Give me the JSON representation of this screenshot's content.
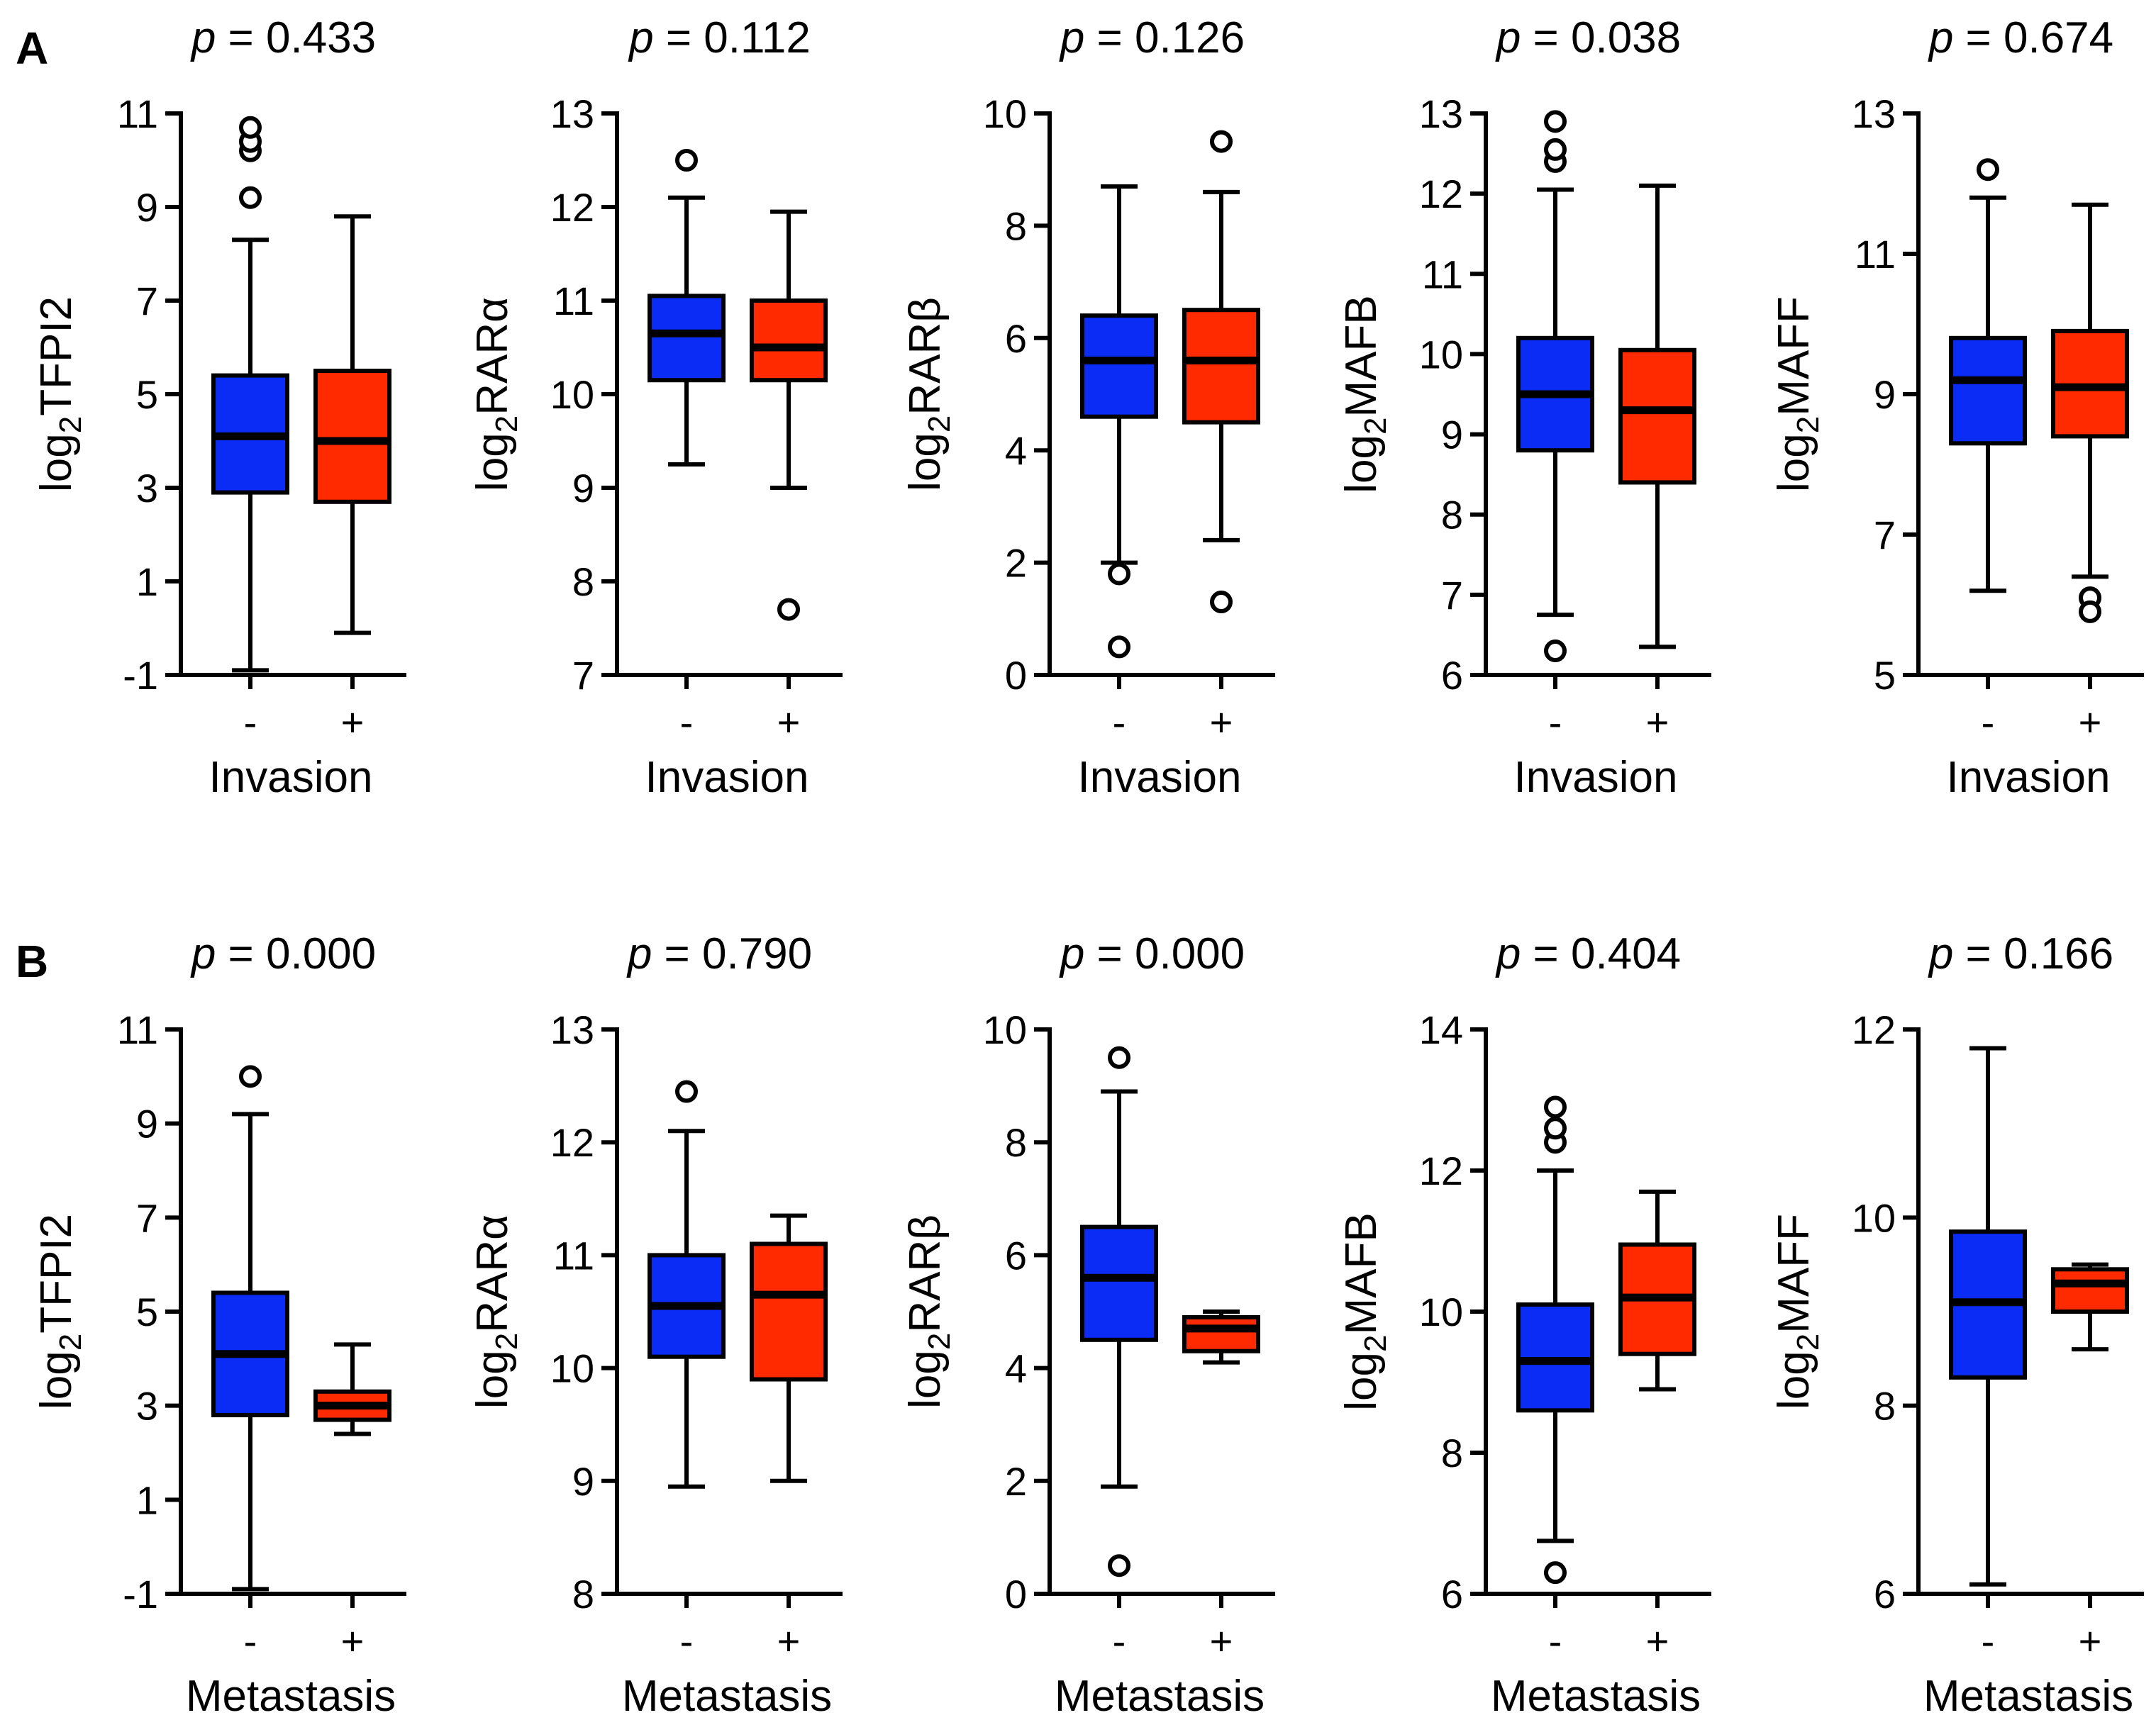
{
  "figure": {
    "panels": [
      {
        "label": "A",
        "xlabel": "Invasion"
      },
      {
        "label": "B",
        "xlabel": "Metastasis"
      }
    ],
    "group_colors": {
      "negative": "#0a2cf5",
      "positive": "#ff2a00"
    },
    "outline_color": "#000000"
  },
  "chart_data": [
    {
      "type": "box",
      "panel": "A",
      "gene": "TFPI2",
      "ylabel_prefix": "log",
      "ylabel_sub": "2",
      "ylabel_gene": "TFPI2",
      "p_prefix": "p",
      "p_text": " = 0.433",
      "xlabel": "Invasion",
      "categories": [
        "-",
        "+"
      ],
      "ylim": [
        -1,
        11
      ],
      "yticks": [
        -1,
        1,
        3,
        5,
        7,
        9,
        11
      ],
      "boxes": [
        {
          "group": "-",
          "whisker_low": -0.9,
          "q1": 2.9,
          "median": 4.1,
          "q3": 5.4,
          "whisker_high": 8.3,
          "outliers": [
            9.2,
            10.2,
            10.4,
            10.7
          ]
        },
        {
          "group": "+",
          "whisker_low": -0.1,
          "q1": 2.7,
          "median": 4.0,
          "q3": 5.5,
          "whisker_high": 8.8,
          "outliers": []
        }
      ]
    },
    {
      "type": "box",
      "panel": "A",
      "gene": "RARα",
      "ylabel_prefix": "log",
      "ylabel_sub": "2",
      "ylabel_gene": "RARα",
      "p_prefix": "p",
      "p_text": " = 0.112",
      "xlabel": "Invasion",
      "categories": [
        "-",
        "+"
      ],
      "ylim": [
        7,
        13
      ],
      "yticks": [
        7,
        8,
        9,
        10,
        11,
        12,
        13
      ],
      "boxes": [
        {
          "group": "-",
          "whisker_low": 9.25,
          "q1": 10.15,
          "median": 10.65,
          "q3": 11.05,
          "whisker_high": 12.1,
          "outliers": [
            12.5
          ]
        },
        {
          "group": "+",
          "whisker_low": 9.0,
          "q1": 10.15,
          "median": 10.5,
          "q3": 11.0,
          "whisker_high": 11.95,
          "outliers": [
            7.7
          ]
        }
      ]
    },
    {
      "type": "box",
      "panel": "A",
      "gene": "RARβ",
      "ylabel_prefix": "log",
      "ylabel_sub": "2",
      "ylabel_gene": "RARβ",
      "p_prefix": "p",
      "p_text": " = 0.126",
      "xlabel": "Invasion",
      "categories": [
        "-",
        "+"
      ],
      "ylim": [
        0,
        10
      ],
      "yticks": [
        0,
        2,
        4,
        6,
        8,
        10
      ],
      "boxes": [
        {
          "group": "-",
          "whisker_low": 2.0,
          "q1": 4.6,
          "median": 5.6,
          "q3": 6.4,
          "whisker_high": 8.7,
          "outliers": [
            1.8,
            0.5
          ]
        },
        {
          "group": "+",
          "whisker_low": 2.4,
          "q1": 4.5,
          "median": 5.6,
          "q3": 6.5,
          "whisker_high": 8.6,
          "outliers": [
            9.5,
            1.3
          ]
        }
      ]
    },
    {
      "type": "box",
      "panel": "A",
      "gene": "MAFB",
      "ylabel_prefix": "log",
      "ylabel_sub": "2",
      "ylabel_gene": "MAFB",
      "p_prefix": "p",
      "p_text": " = 0.038",
      "xlabel": "Invasion",
      "categories": [
        "-",
        "+"
      ],
      "ylim": [
        6,
        13
      ],
      "yticks": [
        6,
        7,
        8,
        9,
        10,
        11,
        12,
        13
      ],
      "boxes": [
        {
          "group": "-",
          "whisker_low": 6.75,
          "q1": 8.8,
          "median": 9.5,
          "q3": 10.2,
          "whisker_high": 12.05,
          "outliers": [
            6.3,
            12.4,
            12.55,
            12.9
          ]
        },
        {
          "group": "+",
          "whisker_low": 6.35,
          "q1": 8.4,
          "median": 9.3,
          "q3": 10.05,
          "whisker_high": 12.1,
          "outliers": []
        }
      ]
    },
    {
      "type": "box",
      "panel": "A",
      "gene": "MAFF",
      "ylabel_prefix": "log",
      "ylabel_sub": "2",
      "ylabel_gene": "MAFF",
      "p_prefix": "p",
      "p_text": " = 0.674",
      "xlabel": "Invasion",
      "categories": [
        "-",
        "+"
      ],
      "ylim": [
        5,
        13
      ],
      "yticks": [
        5,
        7,
        9,
        11,
        13
      ],
      "boxes": [
        {
          "group": "-",
          "whisker_low": 6.2,
          "q1": 8.3,
          "median": 9.2,
          "q3": 9.8,
          "whisker_high": 11.8,
          "outliers": [
            12.2
          ]
        },
        {
          "group": "+",
          "whisker_low": 6.4,
          "q1": 8.4,
          "median": 9.1,
          "q3": 9.9,
          "whisker_high": 11.7,
          "outliers": [
            6.1,
            5.9
          ]
        }
      ]
    },
    {
      "type": "box",
      "panel": "B",
      "gene": "TFPI2",
      "ylabel_prefix": "log",
      "ylabel_sub": "2",
      "ylabel_gene": "TFPI2",
      "p_prefix": "p",
      "p_text": " = 0.000",
      "xlabel": "Metastasis",
      "categories": [
        "-",
        "+"
      ],
      "ylim": [
        -1,
        11
      ],
      "yticks": [
        -1,
        1,
        3,
        5,
        7,
        9,
        11
      ],
      "boxes": [
        {
          "group": "-",
          "whisker_low": -0.9,
          "q1": 2.8,
          "median": 4.1,
          "q3": 5.4,
          "whisker_high": 9.2,
          "outliers": [
            10.0
          ]
        },
        {
          "group": "+",
          "whisker_low": 2.4,
          "q1": 2.7,
          "median": 3.0,
          "q3": 3.3,
          "whisker_high": 4.3,
          "outliers": []
        }
      ]
    },
    {
      "type": "box",
      "panel": "B",
      "gene": "RARα",
      "ylabel_prefix": "log",
      "ylabel_sub": "2",
      "ylabel_gene": "RARα",
      "p_prefix": "p",
      "p_text": " = 0.790",
      "xlabel": "Metastasis",
      "categories": [
        "-",
        "+"
      ],
      "ylim": [
        8,
        13
      ],
      "yticks": [
        8,
        9,
        10,
        11,
        12,
        13
      ],
      "boxes": [
        {
          "group": "-",
          "whisker_low": 8.95,
          "q1": 10.1,
          "median": 10.55,
          "q3": 11.0,
          "whisker_high": 12.1,
          "outliers": [
            12.45
          ]
        },
        {
          "group": "+",
          "whisker_low": 9.0,
          "q1": 9.9,
          "median": 10.65,
          "q3": 11.1,
          "whisker_high": 11.35,
          "outliers": []
        }
      ]
    },
    {
      "type": "box",
      "panel": "B",
      "gene": "RARβ",
      "ylabel_prefix": "log",
      "ylabel_sub": "2",
      "ylabel_gene": "RARβ",
      "p_prefix": "p",
      "p_text": " = 0.000",
      "xlabel": "Metastasis",
      "categories": [
        "-",
        "+"
      ],
      "ylim": [
        0,
        10
      ],
      "yticks": [
        0,
        2,
        4,
        6,
        8,
        10
      ],
      "boxes": [
        {
          "group": "-",
          "whisker_low": 1.9,
          "q1": 4.5,
          "median": 5.6,
          "q3": 6.5,
          "whisker_high": 8.9,
          "outliers": [
            9.5,
            0.5
          ]
        },
        {
          "group": "+",
          "whisker_low": 4.1,
          "q1": 4.3,
          "median": 4.7,
          "q3": 4.9,
          "whisker_high": 5.0,
          "outliers": []
        }
      ]
    },
    {
      "type": "box",
      "panel": "B",
      "gene": "MAFB",
      "ylabel_prefix": "log",
      "ylabel_sub": "2",
      "ylabel_gene": "MAFB",
      "p_prefix": "p",
      "p_text": " = 0.404",
      "xlabel": "Metastasis",
      "categories": [
        "-",
        "+"
      ],
      "ylim": [
        6,
        14
      ],
      "yticks": [
        6,
        8,
        10,
        12,
        14
      ],
      "boxes": [
        {
          "group": "-",
          "whisker_low": 6.75,
          "q1": 8.6,
          "median": 9.3,
          "q3": 10.1,
          "whisker_high": 12.0,
          "outliers": [
            6.3,
            12.4,
            12.6,
            12.9
          ]
        },
        {
          "group": "+",
          "whisker_low": 8.9,
          "q1": 9.4,
          "median": 10.2,
          "q3": 10.95,
          "whisker_high": 11.7,
          "outliers": []
        }
      ]
    },
    {
      "type": "box",
      "panel": "B",
      "gene": "MAFF",
      "ylabel_prefix": "log",
      "ylabel_sub": "2",
      "ylabel_gene": "MAFF",
      "p_prefix": "p",
      "p_text": " = 0.166",
      "xlabel": "Metastasis",
      "categories": [
        "-",
        "+"
      ],
      "ylim": [
        6,
        12
      ],
      "yticks": [
        6,
        8,
        10,
        12
      ],
      "boxes": [
        {
          "group": "-",
          "whisker_low": 6.1,
          "q1": 8.3,
          "median": 9.1,
          "q3": 9.85,
          "whisker_high": 11.8,
          "outliers": []
        },
        {
          "group": "+",
          "whisker_low": 8.6,
          "q1": 9.0,
          "median": 9.3,
          "q3": 9.45,
          "whisker_high": 9.5,
          "outliers": []
        }
      ]
    }
  ]
}
